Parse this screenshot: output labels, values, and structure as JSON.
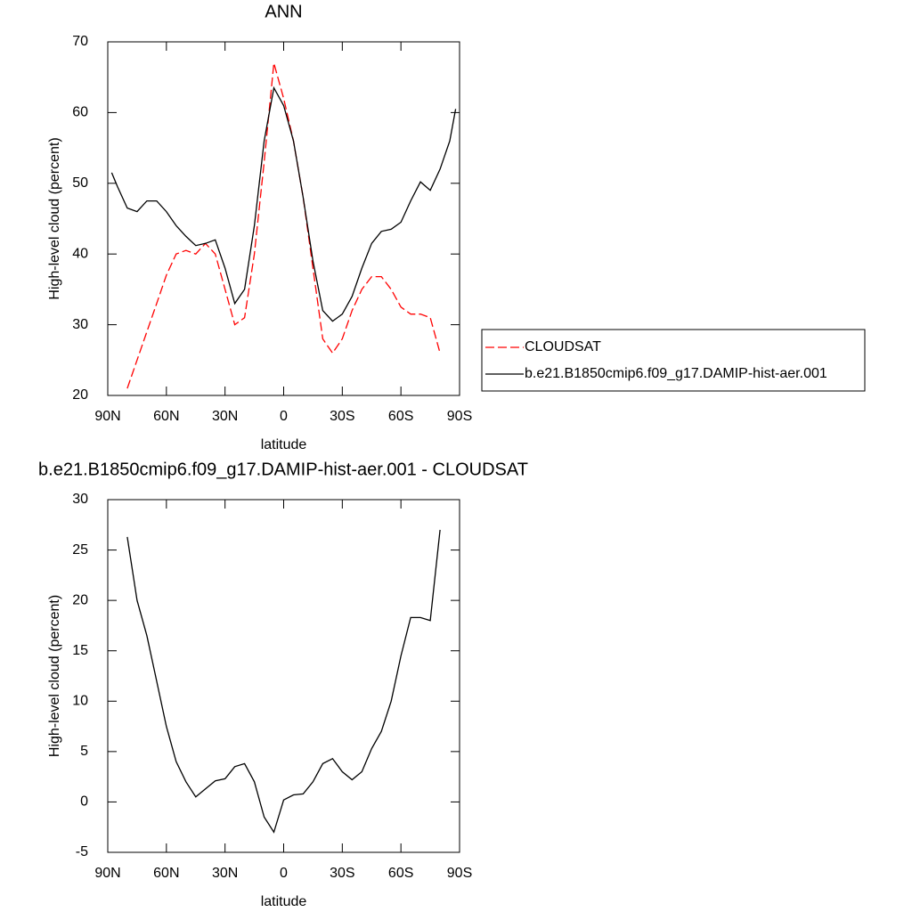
{
  "chart_data": [
    {
      "type": "line",
      "title": "ANN",
      "xlabel": "latitude",
      "ylabel": "High-level cloud (percent)",
      "x": [
        88,
        85,
        80,
        75,
        70,
        65,
        60,
        55,
        50,
        45,
        40,
        35,
        30,
        25,
        20,
        15,
        10,
        5,
        0,
        -5,
        -10,
        -15,
        -20,
        -25,
        -30,
        -35,
        -40,
        -45,
        -50,
        -55,
        -60,
        -65,
        -70,
        -75,
        -80,
        -85,
        -88
      ],
      "xlim": [
        90,
        -90
      ],
      "xticks": [
        {
          "value": 90,
          "label": "90N"
        },
        {
          "value": 60,
          "label": "60N"
        },
        {
          "value": 30,
          "label": "30N"
        },
        0,
        {
          "value": -30,
          "label": "30S"
        },
        {
          "value": -60,
          "label": "60S"
        },
        {
          "value": -90,
          "label": "90S"
        }
      ],
      "ylim": [
        20,
        70
      ],
      "yticks": [
        20,
        30,
        40,
        50,
        60,
        70
      ],
      "legend": "right",
      "series": [
        {
          "name": "CLOUDSAT",
          "color": "#ff0000",
          "dash": true,
          "values": [
            null,
            null,
            21,
            25,
            29,
            33,
            37,
            40,
            40.5,
            40,
            41.5,
            40,
            35,
            30,
            31,
            40,
            53,
            67,
            62,
            56,
            48,
            38,
            28,
            26,
            28,
            32,
            35,
            36.8,
            36.8,
            35,
            32.5,
            31.5,
            31.5,
            31,
            26,
            null,
            null
          ]
        },
        {
          "name": "b.e21.B1850cmip6.f09_g17.DAMIP-hist-aer.001",
          "color": "#000000",
          "dash": false,
          "values": [
            51.5,
            49.5,
            46.5,
            46,
            47.5,
            47.5,
            46,
            44,
            42.5,
            41.2,
            41.5,
            42,
            38,
            33,
            35,
            44,
            56,
            63.5,
            61,
            56,
            48,
            39,
            32,
            30.5,
            31.5,
            34,
            38,
            41.5,
            43.2,
            43.5,
            44.5,
            47.5,
            50.2,
            49,
            52,
            56,
            60.5
          ]
        }
      ]
    },
    {
      "type": "line",
      "title": "b.e21.B1850cmip6.f09_g17.DAMIP-hist-aer.001 - CLOUDSAT",
      "xlabel": "latitude",
      "ylabel": "High-level cloud (percent)",
      "x": [
        80,
        75,
        70,
        65,
        60,
        55,
        50,
        45,
        40,
        35,
        30,
        25,
        20,
        15,
        10,
        5,
        0,
        -5,
        -10,
        -15,
        -20,
        -25,
        -30,
        -35,
        -40,
        -45,
        -50,
        -55,
        -60,
        -65,
        -70,
        -75,
        -80
      ],
      "xlim": [
        90,
        -90
      ],
      "xticks": [
        {
          "value": 90,
          "label": "90N"
        },
        {
          "value": 60,
          "label": "60N"
        },
        {
          "value": 30,
          "label": "30N"
        },
        0,
        {
          "value": -30,
          "label": "30S"
        },
        {
          "value": -60,
          "label": "60S"
        },
        {
          "value": -90,
          "label": "90S"
        }
      ],
      "ylim": [
        -5,
        30
      ],
      "yticks": [
        -5,
        0,
        5,
        10,
        15,
        20,
        25,
        30
      ],
      "color": "#000000",
      "values": [
        26.3,
        20,
        16.5,
        12,
        7.5,
        4,
        2,
        0.5,
        1.3,
        2.1,
        2.3,
        3.5,
        3.8,
        2,
        -1.5,
        -3,
        0.2,
        0.7,
        0.8,
        2,
        3.8,
        4.3,
        3,
        2.2,
        3,
        5.3,
        7,
        10,
        14.5,
        18.3,
        18.3,
        18,
        27
      ]
    }
  ]
}
